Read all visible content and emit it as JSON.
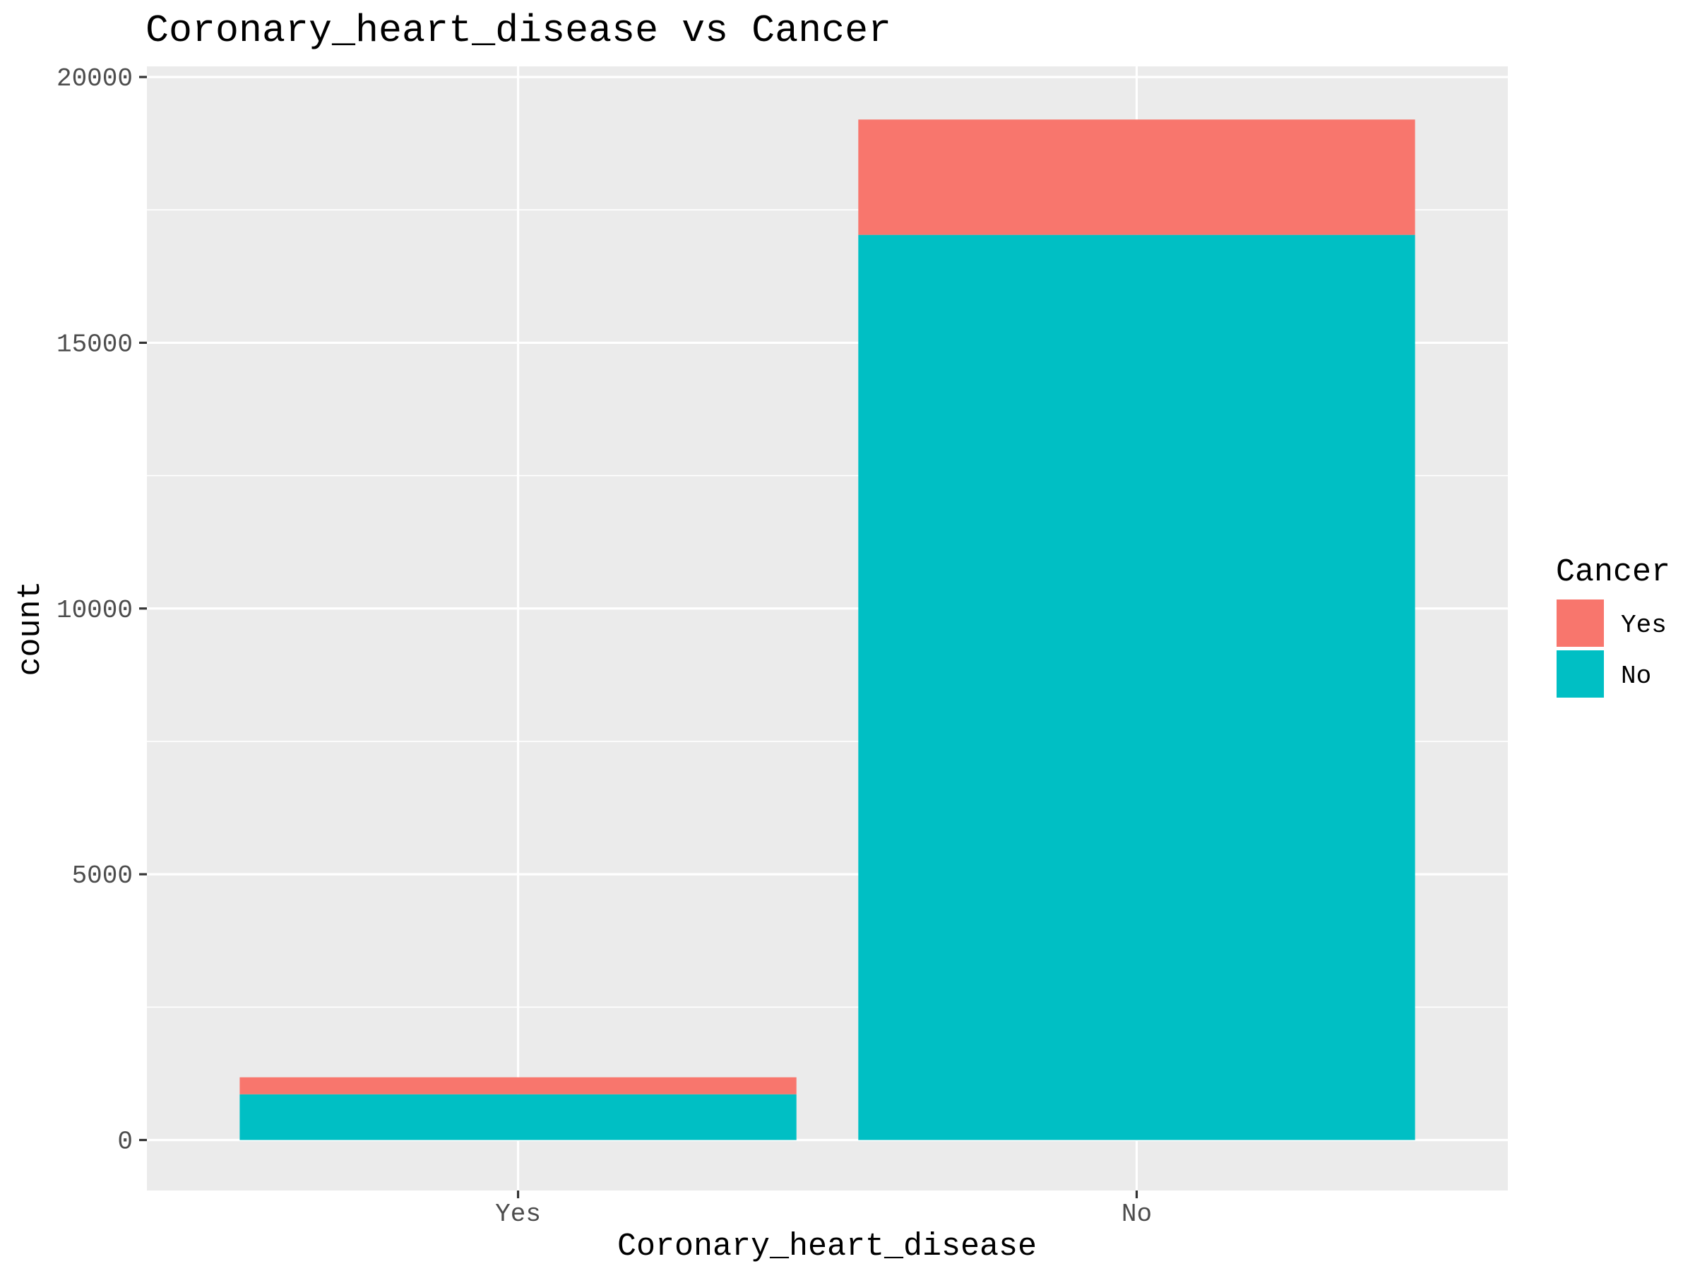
{
  "chart_data": {
    "type": "bar",
    "stacked": true,
    "title": "Coronary_heart_disease vs Cancer",
    "xlabel": "Coronary_heart_disease",
    "ylabel": "count",
    "categories": [
      "Yes",
      "No"
    ],
    "series": [
      {
        "name": "Yes",
        "values": [
          320,
          2170
        ],
        "color": "#F8766D"
      },
      {
        "name": "No",
        "values": [
          860,
          17030
        ],
        "color": "#00BFC4"
      }
    ],
    "ylim": [
      -950,
      20200
    ],
    "yticks": [
      0,
      5000,
      10000,
      15000,
      20000
    ],
    "ytick_labels": [
      "0",
      "5000",
      "10000",
      "15000",
      "20000"
    ],
    "grid": true,
    "legend": {
      "title": "Cancer",
      "position": "right"
    },
    "background": "#EBEBEB"
  }
}
